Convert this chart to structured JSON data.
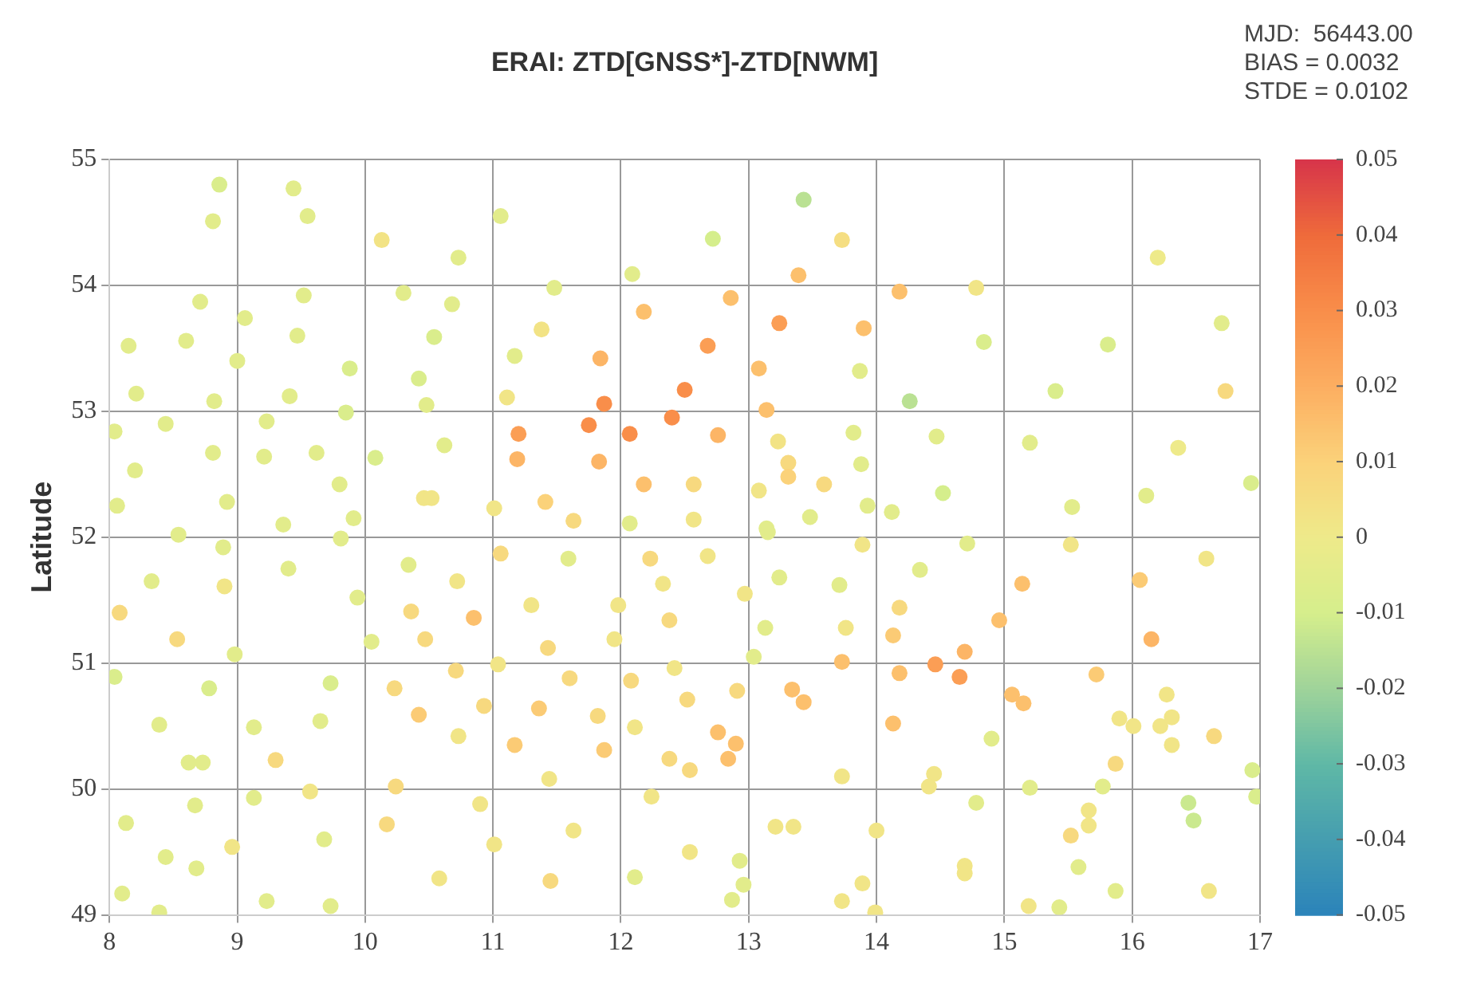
{
  "chart_data": {
    "type": "scatter",
    "title": "ERAI: ZTD[GNSS*]-ZTD[NWM]",
    "ylabel": "Latitude",
    "annotations": [
      "MJD:  56443.00",
      "BIAS = 0.0032",
      "STDE = 0.0102"
    ],
    "xlim": [
      8,
      17
    ],
    "xticks": [
      8,
      9,
      10,
      11,
      12,
      13,
      14,
      15,
      16,
      17
    ],
    "ylim": [
      49,
      55
    ],
    "yticks": [
      49,
      50,
      51,
      52,
      53,
      54,
      55
    ],
    "clim": [
      -0.05,
      0.05
    ],
    "cticks": [
      0.05,
      0.04,
      0.03,
      0.02,
      0.01,
      0,
      -0.01,
      -0.02,
      -0.03,
      -0.04,
      -0.05
    ],
    "grid": true,
    "marker": "circle",
    "x": [
      8.86,
      8.81,
      9.44,
      9.55,
      10.13,
      10.73,
      11.06,
      12.09,
      12.72,
      13.43,
      13.73,
      13.39,
      12.86,
      13.24,
      12.68,
      13.9,
      14.18,
      14.78,
      14.84,
      15.81,
      16.2,
      16.7,
      16.73,
      12.5,
      12.4,
      12.76,
      13.08,
      13.14,
      13.87,
      14.26,
      15.4,
      13.82,
      14.47,
      15.2,
      16.36,
      13.23,
      13.31,
      13.31,
      12.57,
      13.08,
      13.59,
      13.88,
      14.52,
      15.53,
      16.11,
      16.93,
      12.57,
      13.14,
      13.48,
      13.93,
      14.12,
      8.71,
      9.52,
      9.06,
      10.3,
      10.68,
      11.48,
      12.18,
      8.15,
      8.6,
      9.47,
      10.54,
      11.38,
      9.0,
      9.88,
      11.17,
      11.84,
      10.42,
      8.21,
      8.82,
      9.41,
      10.48,
      11.11,
      11.87,
      9.85,
      8.04,
      8.44,
      9.23,
      11.2,
      11.75,
      12.07,
      8.81,
      9.21,
      9.62,
      10.08,
      10.62,
      11.19,
      11.83,
      8.2,
      9.8,
      12.18,
      8.06,
      8.92,
      10.46,
      10.52,
      11.01,
      11.41,
      11.63,
      8.54,
      9.36,
      9.91,
      12.07,
      8.89,
      8.33,
      8.9,
      9.4,
      9.81,
      9.94,
      8.08,
      8.53,
      8.98,
      10.05,
      10.34,
      10.72,
      11.06,
      11.59,
      10.36,
      10.85,
      11.3,
      10.47,
      11.43,
      11.98,
      11.95,
      12.23,
      12.33,
      12.38,
      8.04,
      8.78,
      9.73,
      10.71,
      11.04,
      11.6,
      12.08,
      12.42,
      10.23,
      10.42,
      10.93,
      11.36,
      11.82,
      8.39,
      9.13,
      9.65,
      10.73,
      11.17,
      11.87,
      12.11,
      8.62,
      8.73,
      9.3,
      11.44,
      10.24,
      9.13,
      9.57,
      8.67,
      12.24,
      8.13,
      10.17,
      10.9,
      8.96,
      9.68,
      11.01,
      11.63,
      8.44,
      8.68,
      10.58,
      11.45,
      12.11,
      8.1,
      8.39,
      9.23,
      9.73,
      12.68,
      13.15,
      13.89,
      14.71,
      15.52,
      16.58,
      13.24,
      13.71,
      14.34,
      15.14,
      16.06,
      12.97,
      13.13,
      13.76,
      14.18,
      14.13,
      14.96,
      16.15,
      13.04,
      13.73,
      14.18,
      14.46,
      14.69,
      14.65,
      15.72,
      12.52,
      12.91,
      13.34,
      13.43,
      15.06,
      15.15,
      16.27,
      14.13,
      15.9,
      16.01,
      16.22,
      16.31,
      16.64,
      16.31,
      12.76,
      12.9,
      12.84,
      12.38,
      12.54,
      14.9,
      15.87,
      13.73,
      14.45,
      14.41,
      15.2,
      15.77,
      16.94,
      16.97,
      16.44,
      16.48,
      14.78,
      13.21,
      13.35,
      14.0,
      15.66,
      15.66,
      15.52,
      12.54,
      12.93,
      14.69,
      14.69,
      15.58,
      12.96,
      12.87,
      13.89,
      13.73,
      13.99,
      15.19,
      15.43,
      15.87,
      16.6
    ],
    "values": [
      54.8,
      54.51,
      54.77,
      54.55,
      54.36,
      54.22,
      54.55,
      54.09,
      54.37,
      54.68,
      54.36,
      54.08,
      53.9,
      53.7,
      53.52,
      53.66,
      53.95,
      53.98,
      53.55,
      53.53,
      54.22,
      53.7,
      53.16,
      53.17,
      52.95,
      52.81,
      53.34,
      53.01,
      53.32,
      53.08,
      53.16,
      52.83,
      52.8,
      52.75,
      52.71,
      52.76,
      52.59,
      52.48,
      52.42,
      52.37,
      52.42,
      52.58,
      52.35,
      52.24,
      52.33,
      52.43,
      52.14,
      52.07,
      52.16,
      52.25,
      52.2,
      53.87,
      53.92,
      53.74,
      53.94,
      53.85,
      53.98,
      53.79,
      53.52,
      53.56,
      53.6,
      53.59,
      53.65,
      53.4,
      53.34,
      53.44,
      53.42,
      53.26,
      53.14,
      53.08,
      53.12,
      53.05,
      53.11,
      53.06,
      52.99,
      52.84,
      52.9,
      52.92,
      52.82,
      52.89,
      52.82,
      52.67,
      52.64,
      52.67,
      52.63,
      52.73,
      52.62,
      52.6,
      52.53,
      52.42,
      52.42,
      52.25,
      52.28,
      52.31,
      52.31,
      52.23,
      52.28,
      52.13,
      52.02,
      52.1,
      52.15,
      52.11,
      51.92,
      51.65,
      51.61,
      51.75,
      51.99,
      51.52,
      51.4,
      51.19,
      51.07,
      51.17,
      51.78,
      51.65,
      51.87,
      51.83,
      51.41,
      51.36,
      51.46,
      51.19,
      51.12,
      51.46,
      51.19,
      51.83,
      51.63,
      51.34,
      50.89,
      50.8,
      50.84,
      50.94,
      50.99,
      50.88,
      50.86,
      50.96,
      50.8,
      50.59,
      50.66,
      50.64,
      50.58,
      50.51,
      50.49,
      50.54,
      50.42,
      50.35,
      50.31,
      50.49,
      50.21,
      50.21,
      50.23,
      50.08,
      50.02,
      49.93,
      49.98,
      49.87,
      49.94,
      49.73,
      49.72,
      49.88,
      49.54,
      49.6,
      49.56,
      49.67,
      49.46,
      49.37,
      49.29,
      49.27,
      49.3,
      49.17,
      49.02,
      49.11,
      49.07,
      51.85,
      52.04,
      51.94,
      51.95,
      51.94,
      51.83,
      51.68,
      51.62,
      51.74,
      51.63,
      51.66,
      51.55,
      51.28,
      51.28,
      51.44,
      51.22,
      51.34,
      51.19,
      51.05,
      51.01,
      50.92,
      50.99,
      51.09,
      50.89,
      50.91,
      50.71,
      50.78,
      50.79,
      50.69,
      50.75,
      50.68,
      50.75,
      50.52,
      50.56,
      50.5,
      50.5,
      50.57,
      50.42,
      50.35,
      50.45,
      50.36,
      50.24,
      50.24,
      50.15,
      50.4,
      50.2,
      50.1,
      50.12,
      50.02,
      50.01,
      50.02,
      50.15,
      49.94,
      49.89,
      49.75,
      49.89,
      49.7,
      49.7,
      49.67,
      49.83,
      49.71,
      49.63,
      49.5,
      49.43,
      49.39,
      49.33,
      49.38,
      49.24,
      49.12,
      49.25,
      49.11,
      49.02,
      49.07,
      49.06,
      49.19,
      49.19
    ],
    "cvalues": [
      -0.008,
      -0.005,
      -0.005,
      -0.005,
      0.003,
      -0.005,
      -0.005,
      -0.005,
      -0.01,
      -0.015,
      0.005,
      0.015,
      0.015,
      0.025,
      0.025,
      0.015,
      0.015,
      0.002,
      -0.008,
      -0.008,
      0,
      -0.005,
      0.007,
      0.03,
      0.03,
      0.018,
      0.015,
      0.015,
      -0.005,
      -0.015,
      -0.008,
      -0.005,
      -0.005,
      -0.005,
      0,
      0.003,
      0.007,
      0.01,
      0.007,
      0.002,
      0.007,
      -0.005,
      -0.01,
      -0.005,
      -0.005,
      -0.008,
      0.002,
      -0.005,
      -0.005,
      -0.005,
      -0.005,
      -0.005,
      -0.005,
      -0.005,
      -0.005,
      -0.005,
      -0.005,
      0.015,
      -0.005,
      -0.005,
      -0.005,
      -0.008,
      0.003,
      -0.005,
      -0.008,
      -0.005,
      0.018,
      -0.008,
      -0.005,
      -0.005,
      -0.005,
      -0.005,
      0.002,
      0.03,
      -0.008,
      -0.005,
      -0.005,
      -0.005,
      0.025,
      0.03,
      0.03,
      -0.005,
      -0.005,
      -0.005,
      -0.008,
      -0.005,
      0.018,
      0.018,
      -0.005,
      -0.005,
      0.015,
      -0.005,
      -0.005,
      0.002,
      0.002,
      0.002,
      0.01,
      0.007,
      -0.005,
      -0.005,
      -0.005,
      -0.005,
      -0.005,
      -0.005,
      0.002,
      -0.005,
      -0.005,
      -0.005,
      0.007,
      0.007,
      -0.005,
      -0.005,
      -0.005,
      0.002,
      0.007,
      -0.005,
      0.007,
      0.015,
      0.002,
      0.007,
      0.007,
      0.002,
      0.002,
      0.007,
      0.002,
      0.007,
      -0.008,
      -0.008,
      -0.008,
      0.007,
      0.002,
      0.007,
      0.007,
      0.002,
      0.007,
      0.012,
      0.007,
      0.012,
      0.007,
      -0.005,
      -0.005,
      -0.005,
      0.002,
      0.012,
      0.012,
      0.002,
      -0.005,
      -0.005,
      0.007,
      0.002,
      0.007,
      -0.005,
      0.002,
      -0.005,
      0.002,
      -0.005,
      0.007,
      0.002,
      0.002,
      -0.005,
      0.002,
      0.002,
      -0.005,
      -0.005,
      0.002,
      0.007,
      -0.005,
      -0.005,
      -0.005,
      -0.005,
      -0.005,
      0.002,
      -0.005,
      0.002,
      -0.005,
      0.002,
      0.002,
      -0.005,
      -0.005,
      -0.005,
      0.015,
      0.012,
      0.002,
      -0.005,
      0.002,
      0.007,
      0.012,
      0.015,
      0.018,
      -0.005,
      0.015,
      0.015,
      0.025,
      0.018,
      0.025,
      0.012,
      0.007,
      0.007,
      0.015,
      0.015,
      0.015,
      0.015,
      0.002,
      0.015,
      0.002,
      0.002,
      0.002,
      0.002,
      0.007,
      0.002,
      0.015,
      0.015,
      0.015,
      0.007,
      0.007,
      -0.005,
      0.007,
      0.002,
      0.002,
      0.002,
      -0.005,
      -0.005,
      -0.008,
      -0.008,
      -0.012,
      -0.012,
      -0.005,
      0.002,
      0.002,
      0.002,
      0.002,
      0.002,
      0.007,
      0.002,
      -0.005,
      0.002,
      0.002,
      -0.005,
      -0.005,
      -0.005,
      0.002,
      0.002,
      0.002,
      0.002,
      -0.005,
      -0.005,
      0.002
    ]
  }
}
